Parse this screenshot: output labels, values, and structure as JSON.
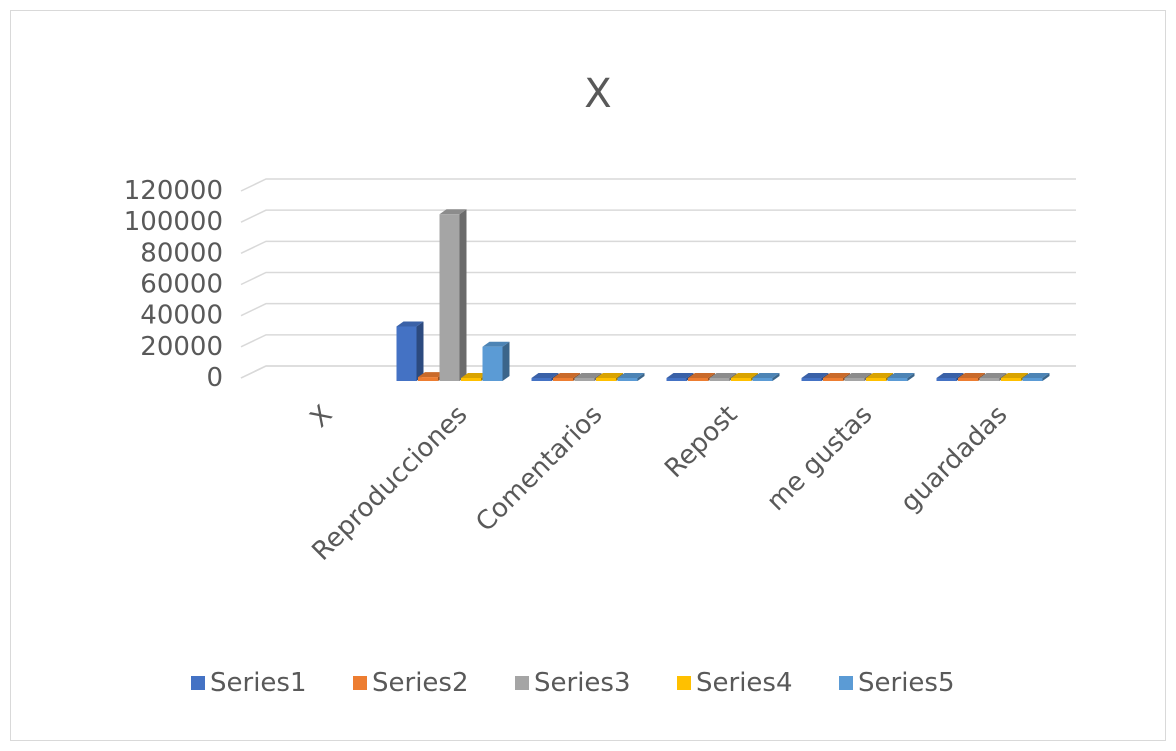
{
  "chart_data": {
    "type": "bar",
    "style": "3d-clustered-column",
    "title": "X",
    "categories": [
      "X",
      "Reproducciones",
      "Comentarios",
      "Repost",
      "me gustas",
      "guardadas"
    ],
    "series": [
      {
        "name": "Series1",
        "color": "#4472C4",
        "values": [
          0,
          35000,
          120,
          300,
          700,
          90
        ]
      },
      {
        "name": "Series2",
        "color": "#ED7D31",
        "values": [
          0,
          2500,
          40,
          80,
          150,
          30
        ]
      },
      {
        "name": "Series3",
        "color": "#A5A5A5",
        "values": [
          0,
          107000,
          150,
          350,
          1000,
          100
        ]
      },
      {
        "name": "Series4",
        "color": "#FFC000",
        "values": [
          0,
          500,
          30,
          60,
          100,
          20
        ]
      },
      {
        "name": "Series5",
        "color": "#5B9BD5",
        "values": [
          0,
          22000,
          90,
          200,
          500,
          60
        ]
      }
    ],
    "ylim": [
      0,
      120000
    ],
    "yticks": [
      "120000",
      "100000",
      "80000",
      "60000",
      "40000",
      "20000",
      "0"
    ],
    "grid": true,
    "legend_position": "bottom"
  }
}
